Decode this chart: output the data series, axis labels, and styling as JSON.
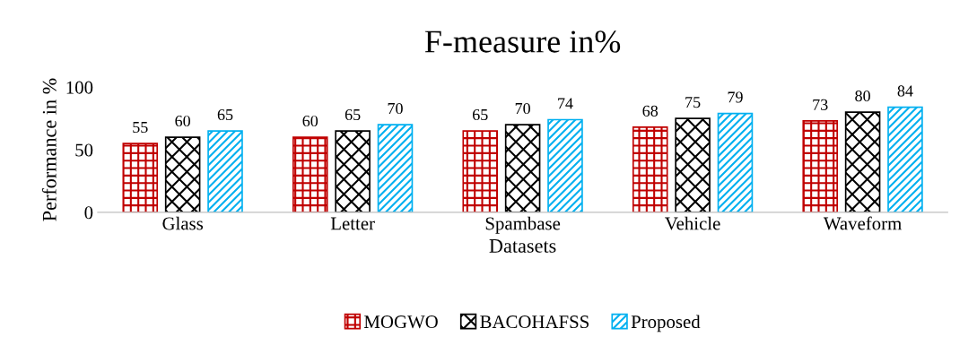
{
  "chart_data": {
    "type": "bar",
    "title": "F-measure in%",
    "xlabel": "Datasets",
    "ylabel": "Performance in %",
    "categories": [
      "Glass",
      "Letter",
      "Spambase",
      "Vehicle",
      "Waveform"
    ],
    "series": [
      {
        "name": "MOGWO",
        "color": "#c00000",
        "values": [
          55,
          60,
          65,
          68,
          73
        ]
      },
      {
        "name": "BACOHAFSS",
        "color": "#000000",
        "values": [
          60,
          65,
          70,
          75,
          80
        ]
      },
      {
        "name": "Proposed",
        "color": "#00b0f0",
        "values": [
          65,
          70,
          74,
          79,
          84
        ]
      }
    ],
    "ylim": [
      0,
      100
    ],
    "yticks": [
      0,
      50,
      100
    ],
    "grid": false,
    "legend": "bottom",
    "data_labels": true
  }
}
